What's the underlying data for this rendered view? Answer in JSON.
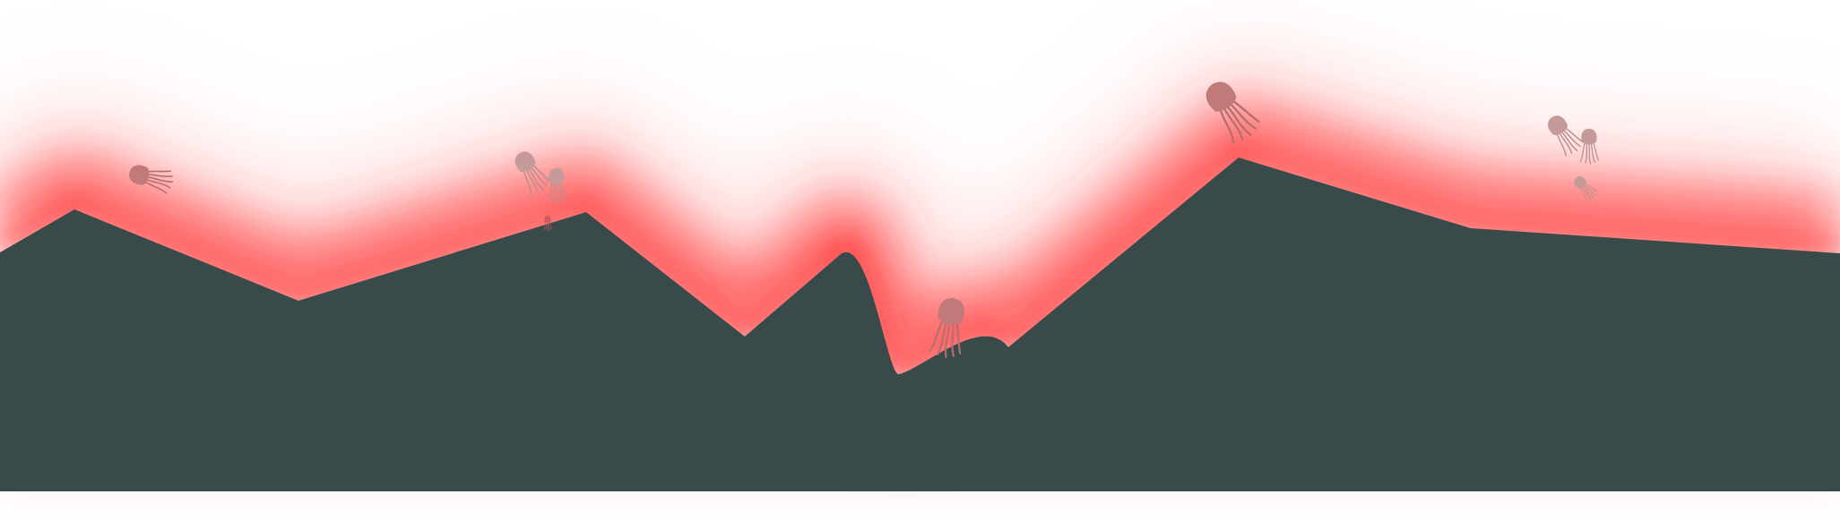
{
  "scene": {
    "kind": "mountain-silhouette-with-floating-jellyfish",
    "colors": {
      "background": "#ffffff",
      "terrain": "#394a4b",
      "glow": "#ff3b3b",
      "creature": "#c07a7a",
      "creature_faded": "#c79a9a",
      "creature_hot": "#d05858"
    },
    "terrain_name": "mountain-ridge",
    "glow_name": "red-glow-band",
    "creature_count": 9,
    "creature_kind": "jellyfish-icon"
  }
}
